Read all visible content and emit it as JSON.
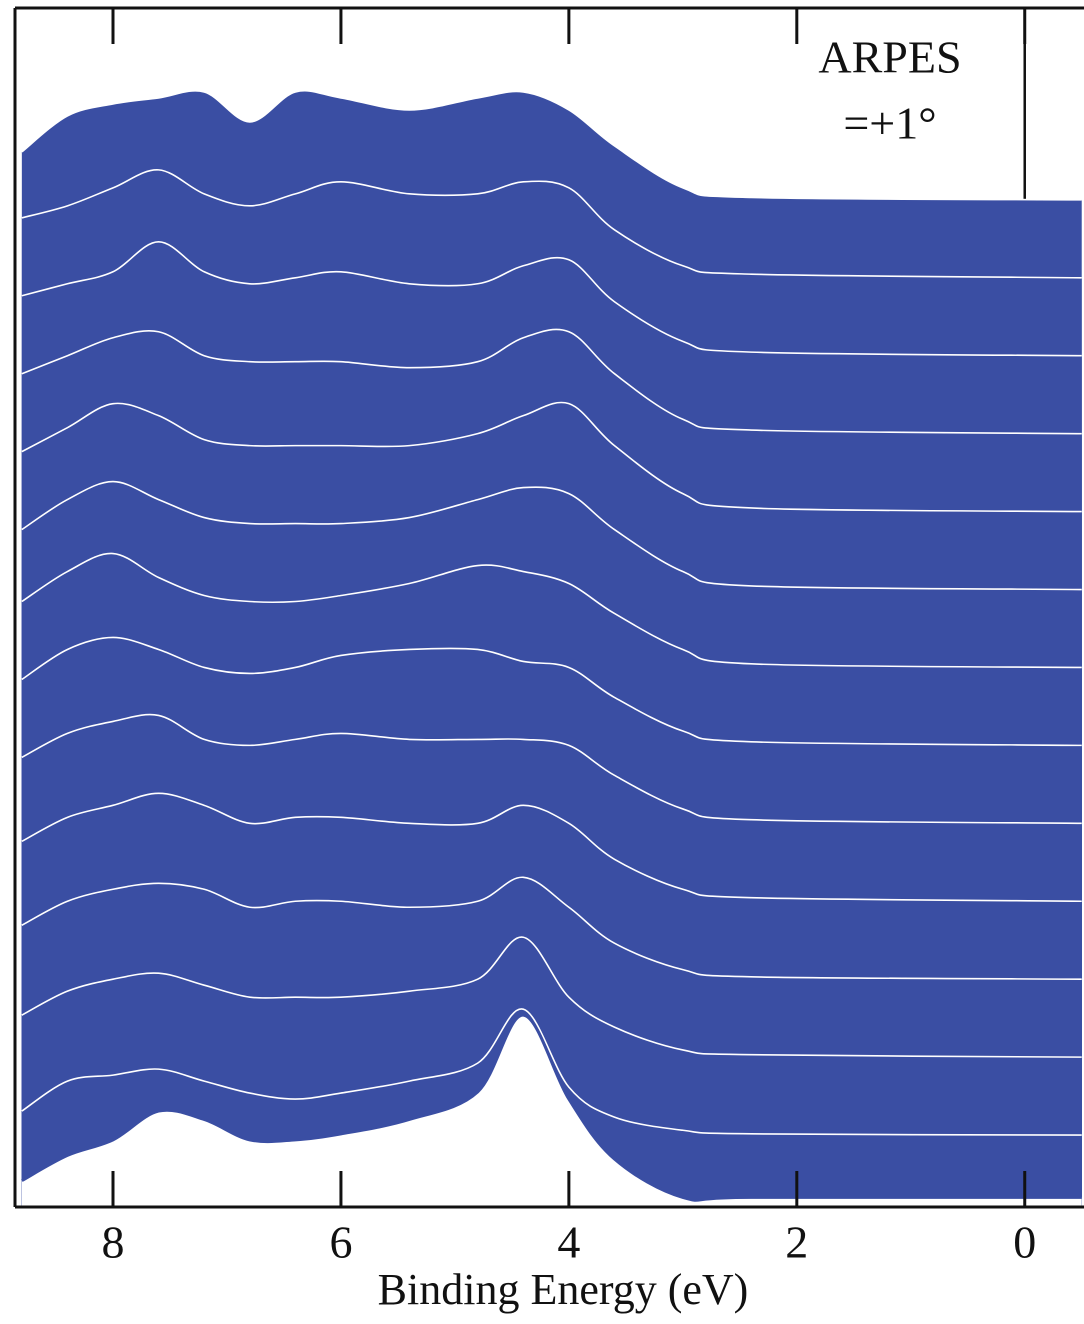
{
  "chart_data": {
    "type": "waterfall",
    "xlabel": "Binding Energy (eV)",
    "annotations": [
      "ARPES",
      "=+1°"
    ],
    "color": "#3a4ea3",
    "xlim": [
      8.86,
      -0.52
    ],
    "xticks": [
      8,
      6,
      4,
      2,
      0
    ],
    "ylim": [
      0,
      100
    ],
    "x": [
      8.8,
      8.4,
      8.0,
      7.6,
      7.2,
      6.8,
      6.4,
      6.0,
      5.4,
      4.8,
      4.4,
      4.0,
      3.6,
      3.0,
      2.4,
      -0.5
    ],
    "series": [
      {
        "values": [
          88,
          91,
          92,
          92.5,
          93,
          90.5,
          93,
          92.5,
          91.5,
          92.5,
          93,
          91.5,
          88.5,
          85,
          84.2,
          84
        ]
      },
      {
        "values": [
          82.5,
          83.5,
          85,
          86.5,
          84.5,
          83.5,
          84.5,
          85.5,
          84.5,
          84.5,
          85.5,
          85,
          81.5,
          78.5,
          77.8,
          77.5
        ]
      },
      {
        "values": [
          76,
          77,
          78,
          80.5,
          78,
          77,
          77.5,
          78,
          77,
          77,
          78.5,
          79,
          75.5,
          72.2,
          71.3,
          71
        ]
      },
      {
        "values": [
          69.5,
          71,
          72.5,
          73,
          71,
          70.5,
          70.5,
          70.5,
          70,
          70.5,
          72.5,
          73,
          69.5,
          65.7,
          64.8,
          64.5
        ]
      },
      {
        "values": [
          63,
          65,
          67,
          66,
          64,
          63.5,
          63.5,
          63.5,
          63.5,
          64.5,
          66,
          67,
          63.5,
          59.5,
          58.3,
          58
        ]
      },
      {
        "values": [
          56.5,
          59,
          60.5,
          59,
          57.5,
          57,
          57,
          57,
          57.5,
          59,
          60,
          59.5,
          56.5,
          53,
          51.8,
          51.5
        ]
      },
      {
        "values": [
          50.5,
          53,
          54.5,
          52.5,
          51,
          50.5,
          50.5,
          51,
          52,
          53.5,
          53,
          52,
          49.5,
          46.5,
          45.3,
          45
        ]
      },
      {
        "values": [
          44,
          46.5,
          47.5,
          46.5,
          45,
          44.5,
          45,
          46,
          46.5,
          46.5,
          45.5,
          45,
          42.5,
          39.7,
          38.8,
          38.5
        ]
      },
      {
        "values": [
          37.5,
          39.5,
          40.5,
          41,
          39,
          38.5,
          39,
          39.5,
          39,
          39,
          39,
          38.5,
          36,
          33.2,
          32.3,
          32
        ]
      },
      {
        "values": [
          30.5,
          32.5,
          33.5,
          34.5,
          33.5,
          32,
          32.5,
          32.5,
          32,
          32,
          33.5,
          32,
          29,
          26.5,
          25.8,
          25.5
        ]
      },
      {
        "values": [
          23.5,
          25.5,
          26.5,
          27,
          26.5,
          25,
          25.5,
          25.5,
          25,
          25.5,
          27.5,
          25,
          22,
          19.8,
          19.2,
          19
        ]
      },
      {
        "values": [
          16,
          18,
          19,
          19.5,
          18.5,
          17.5,
          17.5,
          17.5,
          18,
          19,
          22.5,
          17.5,
          15,
          13.1,
          12.7,
          12.5
        ]
      },
      {
        "values": [
          8,
          10.5,
          11,
          11.5,
          10.5,
          9.5,
          9,
          9.5,
          10.5,
          12,
          16.5,
          10,
          7.5,
          6.4,
          6.1,
          6
        ]
      },
      {
        "values": [
          2.2,
          4.3,
          5.6,
          8,
          7.3,
          5.6,
          5.6,
          6.1,
          7.3,
          9.6,
          16,
          9,
          4,
          0.8,
          0.8,
          0.8
        ]
      }
    ]
  }
}
